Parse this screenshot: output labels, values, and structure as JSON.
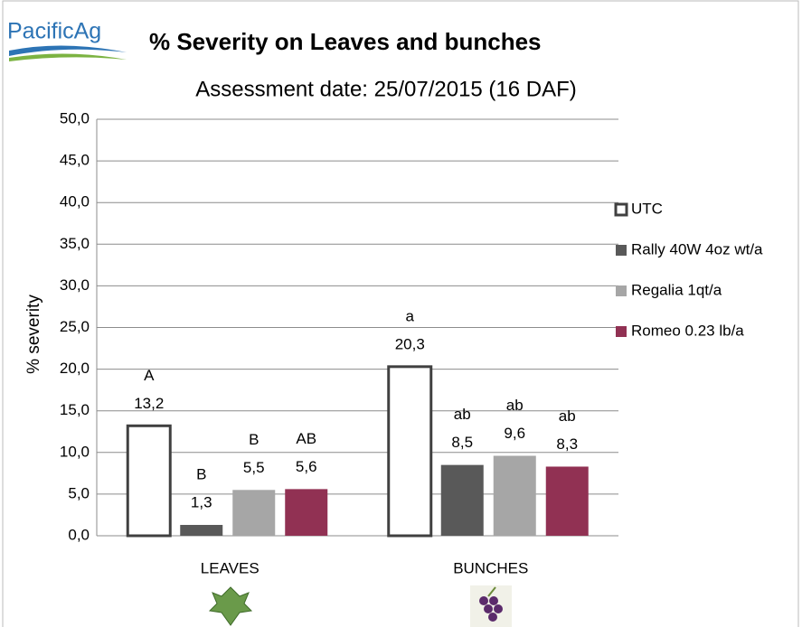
{
  "logo": "PacificAg",
  "chart_data": {
    "type": "bar",
    "title": "% Severity on Leaves and bunches",
    "subtitle": "Assessment date: 25/07/2015 (16 DAF)",
    "y_label": "% severity",
    "categories": [
      "LEAVES",
      "BUNCHES"
    ],
    "series": [
      {
        "name": "UTC",
        "color": "#ffffff",
        "values": [
          13.2,
          20.3
        ],
        "value_labels": [
          "13,2",
          "20,3"
        ],
        "significance": [
          "A",
          "a"
        ]
      },
      {
        "name": "Rally 40W 4oz wt/a",
        "color": "#595959",
        "values": [
          1.3,
          8.5
        ],
        "value_labels": [
          "1,3",
          "8,5"
        ],
        "significance": [
          "B",
          "ab"
        ]
      },
      {
        "name": "Regalia 1qt/a",
        "color": "#a6a6a6",
        "values": [
          5.5,
          9.6
        ],
        "value_labels": [
          "5,5",
          "9,6"
        ],
        "significance": [
          "B",
          "ab"
        ]
      },
      {
        "name": "Romeo 0.23 lb/a",
        "color": "#913153",
        "values": [
          5.6,
          8.3
        ],
        "value_labels": [
          "5,6",
          "8,3"
        ],
        "significance": [
          "AB",
          "ab"
        ]
      }
    ],
    "ylim": [
      0,
      50
    ],
    "yticks": [
      {
        "value": 0,
        "label": "0,0"
      },
      {
        "value": 5,
        "label": "5,0"
      },
      {
        "value": 10,
        "label": "10,0"
      },
      {
        "value": 15,
        "label": "15,0"
      },
      {
        "value": 20,
        "label": "20,0"
      },
      {
        "value": 25,
        "label": "25,0"
      },
      {
        "value": 30,
        "label": "30,0"
      },
      {
        "value": 35,
        "label": "35,0"
      },
      {
        "value": 40,
        "label": "40,0"
      },
      {
        "value": 45,
        "label": "45,0"
      },
      {
        "value": 50,
        "label": "50,0"
      }
    ],
    "grid": true,
    "legend": "right"
  }
}
